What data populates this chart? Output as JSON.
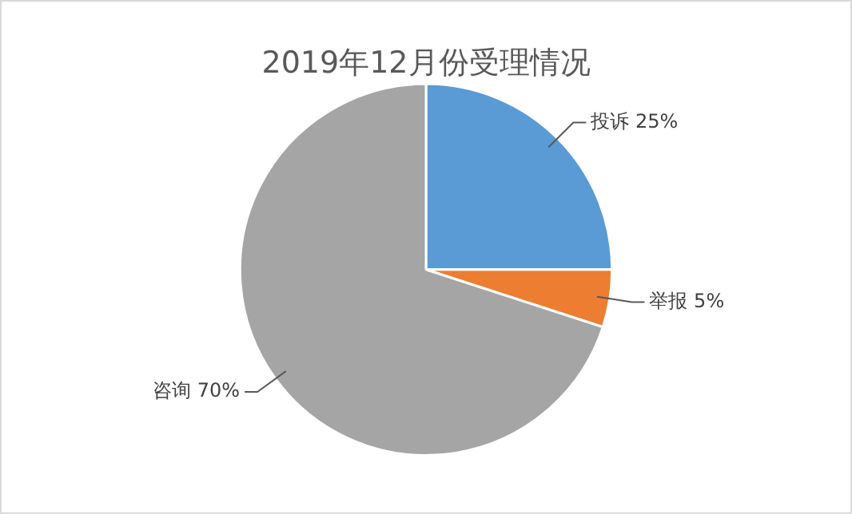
{
  "chart_data": {
    "type": "pie",
    "title": "2019年12月份受理情况",
    "categories": [
      "投诉",
      "举报",
      "咨询"
    ],
    "values": [
      25,
      5,
      70
    ],
    "colors": [
      "#5b9bd5",
      "#ed7d31",
      "#a5a5a5"
    ],
    "value_labels": [
      "25%",
      "5%",
      "70%"
    ],
    "legend": false
  }
}
